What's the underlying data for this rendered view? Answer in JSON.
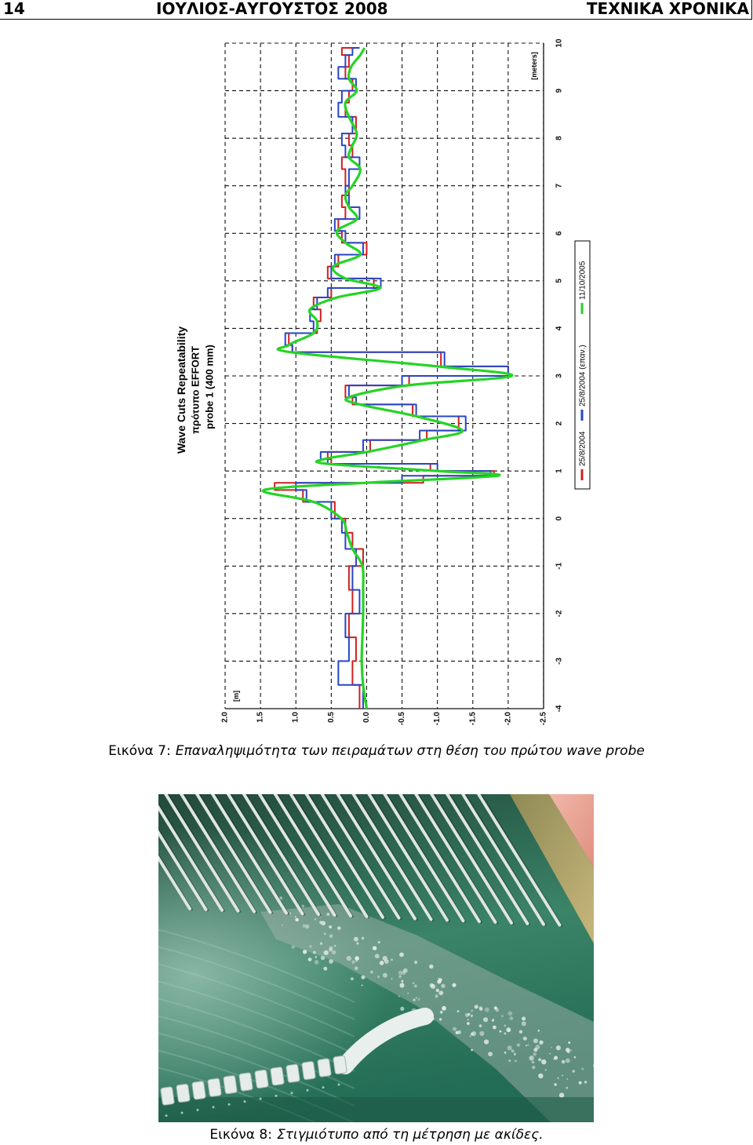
{
  "header": {
    "page_number": "14",
    "issue": "ΙΟΥΛΙΟΣ-ΑΥΓΟΥΣΤΟΣ 2008",
    "publication": "ΤΕΧΝΙΚΑ ΧΡΟΝΙΚΑ"
  },
  "figure7": {
    "caption_label": "Εικόνα 7:",
    "caption_text": "Επαναληψιμότητα των πειραμάτων στη θέση του πρώτου wave probe"
  },
  "figure8": {
    "caption_label": "Εικόνα 8:",
    "caption_text": "Στιγμιότυπο από τη μέτρηση με ακίδες."
  },
  "chart_data": {
    "type": "line",
    "title": "Wave Cuts Repeatability",
    "subtitle": [
      "πρότυπο EFFORT",
      "probe 1 (400 mm)"
    ],
    "xlabel": "[meters]",
    "ylabel": "[m]",
    "xlim": [
      -4,
      10
    ],
    "ylim": [
      -2.5,
      2.0
    ],
    "xticks": [
      "-4",
      "-3",
      "-2",
      "-1",
      "0",
      "1",
      "2",
      "3",
      "4",
      "5",
      "6",
      "7",
      "8",
      "9",
      "10"
    ],
    "yticks": [
      "2.0",
      "1.5",
      "1.0",
      "0.5",
      "0.0",
      "-0.5",
      "-1.0",
      "-1.5",
      "-2.0",
      "-2.5"
    ],
    "grid": true,
    "grid_style": "dashed",
    "rotated": true,
    "legend_position": "right",
    "x": [
      -4,
      -3.5,
      -3,
      -2.5,
      -2,
      -1.5,
      -1,
      -0.64,
      -0.3,
      0,
      0.35,
      0.6,
      0.75,
      0.9,
      1.0,
      1.15,
      1.25,
      1.4,
      1.65,
      1.85,
      2.15,
      2.4,
      2.55,
      2.8,
      3.0,
      3.2,
      3.5,
      3.65,
      3.9,
      4.15,
      4.4,
      4.65,
      4.85,
      5.05,
      5.3,
      5.55,
      5.8,
      6.05,
      6.3,
      6.55,
      6.8,
      7.0,
      7.35,
      7.6,
      7.85,
      8.1,
      8.45,
      8.75,
      9.0,
      9.25,
      9.5,
      9.75,
      9.9
    ],
    "series": [
      {
        "name": "25/8/2004",
        "color": "#d11f1f",
        "interpolation": "step",
        "values": [
          0.1,
          0.2,
          0.15,
          0.25,
          0.2,
          0.25,
          0.05,
          0.2,
          0.3,
          0.45,
          0.9,
          1.3,
          -0.8,
          -1.8,
          -0.9,
          0.5,
          0.55,
          -0.05,
          -0.85,
          -1.3,
          -0.65,
          0.2,
          0.3,
          -0.6,
          -2.0,
          -1.05,
          1.05,
          1.1,
          0.7,
          0.65,
          0.75,
          0.5,
          -0.1,
          0.55,
          0.4,
          0.0,
          0.35,
          0.4,
          0.3,
          0.35,
          0.25,
          0.3,
          0.35,
          0.2,
          0.25,
          0.15,
          0.3,
          0.25,
          0.2,
          0.3,
          0.25,
          0.35,
          0.1
        ]
      },
      {
        "name": "25/8/2004 (επαν.)",
        "color": "#2746c4",
        "interpolation": "step",
        "values": [
          0.05,
          0.4,
          0.25,
          0.3,
          0.1,
          0.2,
          0.15,
          0.3,
          0.35,
          0.5,
          0.85,
          1.0,
          -0.5,
          -1.75,
          -1.0,
          0.55,
          0.65,
          0.05,
          -0.75,
          -1.4,
          -0.7,
          0.15,
          0.25,
          -0.5,
          -2.0,
          -1.1,
          1.05,
          1.15,
          0.75,
          0.8,
          0.7,
          0.55,
          -0.2,
          0.5,
          0.45,
          0.05,
          0.3,
          0.45,
          0.1,
          0.25,
          0.3,
          0.25,
          0.1,
          0.3,
          0.35,
          0.2,
          0.4,
          0.35,
          0.15,
          0.4,
          0.3,
          0.2,
          0.1
        ]
      },
      {
        "name": "11/10/2005",
        "color": "#25d425",
        "interpolation": "smooth",
        "values": [
          0.0,
          0.05,
          0.07,
          0.06,
          0.05,
          0.05,
          0.06,
          0.2,
          0.28,
          0.36,
          0.75,
          1.45,
          0.03,
          -1.85,
          -1.0,
          0.55,
          0.6,
          0.0,
          -0.8,
          -1.35,
          -0.7,
          0.1,
          0.25,
          -0.57,
          -2.05,
          -1.0,
          1.08,
          1.1,
          0.75,
          0.7,
          0.8,
          0.42,
          -0.19,
          0.3,
          0.47,
          0.09,
          0.3,
          0.42,
          0.14,
          0.25,
          0.3,
          0.2,
          0.09,
          0.25,
          0.2,
          0.14,
          0.25,
          0.3,
          0.14,
          0.25,
          0.22,
          0.09,
          0.03
        ]
      }
    ]
  }
}
